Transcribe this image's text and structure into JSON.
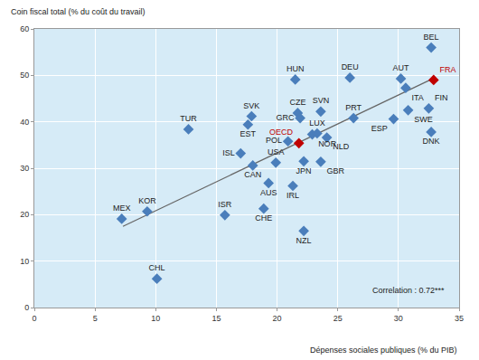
{
  "chart_data": {
    "type": "scatter",
    "y_label": "Coin fiscal total (% du coût du travail)",
    "x_label": "Dépenses sociales publiques (% du PIB)",
    "annotation": "Correlation : 0.72***",
    "marker": "diamond",
    "color": "#4a7ebb",
    "labels": [
      "MEX",
      "KOR",
      "CHL",
      "TUR",
      "ISR",
      "ISL",
      "EST",
      "SVK",
      "CAN",
      "CHE",
      "AUS",
      "USA",
      "POL",
      "IRL",
      "HUN",
      "CZE",
      "GRC",
      "OECD",
      "NZL",
      "JPN",
      "NOR",
      "LUX",
      "GBR",
      "SVN",
      "NLD",
      "DEU",
      "PRT",
      "ESP",
      "AUT",
      "ITA",
      "SWE",
      "FIN",
      "DNK",
      "BEL",
      "FRA"
    ],
    "x": [
      7.2,
      9.3,
      10.1,
      12.7,
      15.7,
      17.0,
      17.6,
      17.9,
      18.0,
      18.9,
      19.3,
      19.9,
      20.9,
      21.3,
      21.5,
      21.7,
      21.9,
      21.8,
      22.2,
      22.2,
      22.9,
      23.3,
      23.6,
      23.6,
      24.1,
      26.0,
      26.3,
      29.6,
      30.2,
      30.6,
      30.8,
      32.5,
      32.7,
      32.7,
      32.9
    ],
    "values": [
      19.1,
      20.7,
      6.2,
      38.4,
      19.9,
      33.2,
      39.4,
      41.2,
      30.6,
      21.3,
      26.8,
      31.2,
      35.8,
      26.2,
      49.1,
      41.9,
      40.8,
      35.4,
      16.5,
      31.5,
      37.3,
      37.5,
      31.4,
      42.2,
      36.6,
      49.5,
      40.8,
      40.6,
      49.3,
      47.3,
      42.5,
      42.9,
      37.8,
      56.0,
      49.0
    ],
    "colors": [
      "#4a7ebb",
      "#4a7ebb",
      "#4a7ebb",
      "#4a7ebb",
      "#4a7ebb",
      "#4a7ebb",
      "#4a7ebb",
      "#4a7ebb",
      "#4a7ebb",
      "#4a7ebb",
      "#4a7ebb",
      "#4a7ebb",
      "#4a7ebb",
      "#4a7ebb",
      "#4a7ebb",
      "#4a7ebb",
      "#4a7ebb",
      "#c00000",
      "#4a7ebb",
      "#4a7ebb",
      "#4a7ebb",
      "#4a7ebb",
      "#4a7ebb",
      "#4a7ebb",
      "#4a7ebb",
      "#4a7ebb",
      "#4a7ebb",
      "#4a7ebb",
      "#4a7ebb",
      "#4a7ebb",
      "#4a7ebb",
      "#4a7ebb",
      "#4a7ebb",
      "#4a7ebb",
      "#c00000"
    ],
    "trend_line": {
      "x": [
        7.3,
        33.0
      ],
      "values": [
        17.5,
        49.5
      ],
      "color": "#666666",
      "line_style": "solid"
    },
    "xlim": [
      0,
      35
    ],
    "xticks": [
      0,
      5,
      10,
      15,
      20,
      25,
      30,
      35
    ],
    "ylim": [
      0,
      60
    ],
    "yticks": [
      0,
      10,
      20,
      30,
      40,
      50,
      60
    ],
    "grid": true
  }
}
